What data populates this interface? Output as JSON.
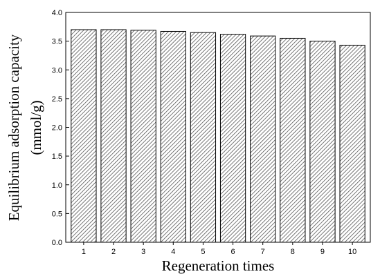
{
  "chart_data": {
    "type": "bar",
    "categories": [
      "1",
      "2",
      "3",
      "4",
      "5",
      "6",
      "7",
      "8",
      "9",
      "10"
    ],
    "values": [
      3.7,
      3.7,
      3.69,
      3.67,
      3.65,
      3.62,
      3.59,
      3.55,
      3.5,
      3.43
    ],
    "title": "",
    "xlabel": "Regeneration times",
    "ylabel": "Equilibrium adsorption capacity",
    "ylabel_unit": "(mmol/g)",
    "ylim": [
      0,
      4.0
    ],
    "yticks": [
      "0.0",
      "0.5",
      "1.0",
      "1.5",
      "2.0",
      "2.5",
      "3.0",
      "3.5",
      "4.0"
    ],
    "grid": false,
    "legend": "none",
    "bar_fill": "hatched diagonal",
    "colors": {
      "bar_edge": "#000000",
      "hatch": "#555555",
      "bar_bg": "#ffffff"
    }
  }
}
